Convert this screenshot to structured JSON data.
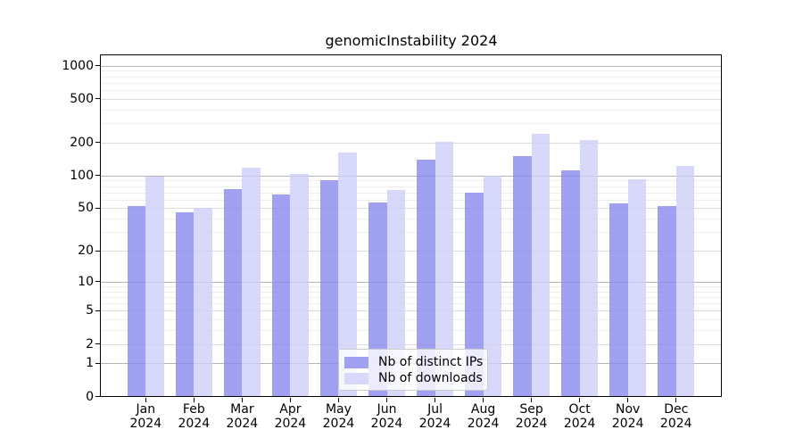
{
  "title": "genomicInstability 2024",
  "colors": {
    "ips_bar": "rgba(138,138,238,0.8)",
    "downloads_bar": "rgba(206,206,250,0.8)",
    "ips_swatch": "#a1a1f1",
    "downloads_swatch": "#d8d8fb",
    "grid_decade": "#b4b4b4",
    "grid_labeled": "#dcdcdc",
    "grid_minor": "#eeeeee",
    "frame": "#000000"
  },
  "legend": {
    "entries": [
      {
        "label": "Nb of distinct IPs",
        "swatch": "ips"
      },
      {
        "label": "Nb of downloads",
        "swatch": "downloads"
      }
    ]
  },
  "x_axis": {
    "year_line": "2024",
    "months": [
      "Jan",
      "Feb",
      "Mar",
      "Apr",
      "May",
      "Jun",
      "Jul",
      "Aug",
      "Sep",
      "Oct",
      "Nov",
      "Dec"
    ]
  },
  "y_axis": {
    "tick_labels": [
      "0",
      "1",
      "2",
      "5",
      "10",
      "20",
      "50",
      "100",
      "200",
      "500",
      "1000"
    ]
  },
  "chart_data": {
    "type": "bar",
    "title": "genomicInstability 2024",
    "categories": [
      "Jan 2024",
      "Feb 2024",
      "Mar 2024",
      "Apr 2024",
      "May 2024",
      "Jun 2024",
      "Jul 2024",
      "Aug 2024",
      "Sep 2024",
      "Oct 2024",
      "Nov 2024",
      "Dec 2024"
    ],
    "series": [
      {
        "name": "Nb of distinct IPs",
        "values": [
          52,
          46,
          75,
          67,
          91,
          57,
          140,
          70,
          150,
          112,
          55,
          52
        ]
      },
      {
        "name": "Nb of downloads",
        "values": [
          97,
          50,
          118,
          103,
          163,
          74,
          203,
          100,
          242,
          212,
          93,
          122
        ]
      }
    ],
    "xlabel": "",
    "ylabel": "",
    "yscale": "log1p",
    "yticks": [
      0,
      1,
      2,
      5,
      10,
      20,
      50,
      100,
      200,
      500,
      1000
    ],
    "minor_gridlines": [
      3,
      4,
      6,
      7,
      8,
      9,
      30,
      40,
      60,
      70,
      80,
      90,
      300,
      400,
      600,
      700,
      800,
      900
    ],
    "ylim": [
      0,
      1240
    ],
    "grid": true,
    "legend_position": "lower center"
  }
}
